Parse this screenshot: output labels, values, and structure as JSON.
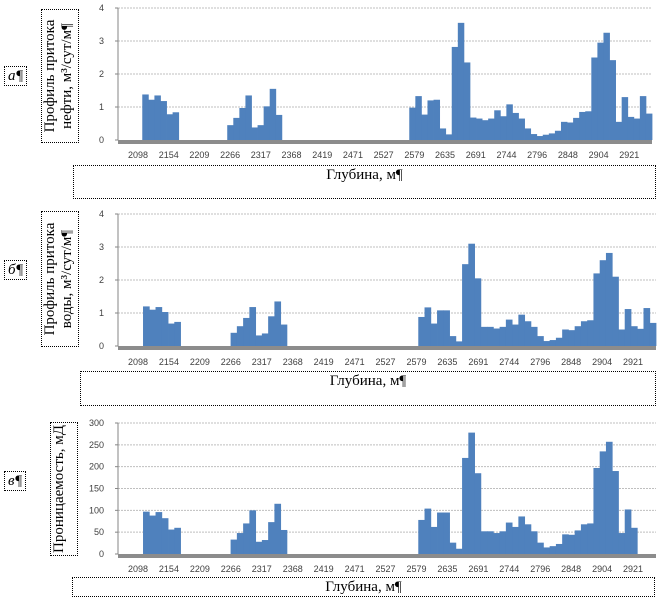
{
  "xlabel": "Глубина, м¶",
  "chart_data": [
    {
      "type": "bar",
      "panel": "а¶",
      "title": "",
      "ylabel": "Профиль притока нефти, м³/сут/м¶",
      "xlabel": "Глубина, м¶",
      "ylim": [
        0,
        4
      ],
      "yticks": [
        0,
        1,
        2,
        3,
        4
      ],
      "grid": true,
      "color": "#4f81bd",
      "tick_labels": [
        "2098",
        "2154",
        "2209",
        "2266",
        "2317",
        "2368",
        "2419",
        "2471",
        "2527",
        "2579",
        "2635",
        "2691",
        "2744",
        "2796",
        "2848",
        "2904",
        "2921"
      ],
      "values": [
        0,
        0,
        0,
        0,
        1.38,
        1.22,
        1.35,
        1.18,
        0.78,
        0.84,
        0,
        0,
        0,
        0,
        0,
        0,
        0,
        0,
        0.45,
        0.67,
        0.97,
        1.35,
        0.38,
        0.45,
        1.02,
        1.55,
        0.76,
        0,
        0,
        0,
        0,
        0,
        0,
        0,
        0,
        0,
        0,
        0,
        0,
        0,
        0,
        0,
        0,
        0,
        0,
        0,
        0,
        0,
        0.98,
        1.33,
        0.77,
        1.2,
        1.22,
        0.35,
        0.17,
        2.82,
        3.55,
        2.35,
        0.68,
        0.65,
        0.6,
        0.65,
        0.9,
        0.72,
        1.08,
        0.82,
        0.65,
        0.35,
        0.18,
        0.12,
        0.16,
        0.2,
        0.28,
        0.55,
        0.53,
        0.67,
        0.85,
        0.87,
        2.5,
        2.95,
        3.25,
        2.42,
        0.55,
        1.3,
        0.7,
        0.65,
        1.33,
        0.8
      ]
    },
    {
      "type": "bar",
      "panel": "б¶",
      "title": "",
      "ylabel": "Профиль притока воды, м³/сут/м¶",
      "xlabel": "Глубина, м¶",
      "ylim": [
        0,
        4
      ],
      "yticks": [
        0,
        1,
        2,
        3,
        4
      ],
      "grid": true,
      "color": "#4f81bd",
      "tick_labels": [
        "2098",
        "2154",
        "2209",
        "2266",
        "2317",
        "2368",
        "2419",
        "2471",
        "2527",
        "2579",
        "2635",
        "2691",
        "2744",
        "2796",
        "2848",
        "2904",
        "2921"
      ],
      "values": [
        0,
        0,
        0,
        0,
        1.2,
        1.1,
        1.18,
        1.03,
        0.68,
        0.73,
        0,
        0,
        0,
        0,
        0,
        0,
        0,
        0,
        0.4,
        0.6,
        0.85,
        1.18,
        0.32,
        0.38,
        0.9,
        1.35,
        0.65,
        0,
        0,
        0,
        0,
        0,
        0,
        0,
        0,
        0,
        0,
        0,
        0,
        0,
        0,
        0,
        0,
        0,
        0,
        0,
        0,
        0,
        0.88,
        1.17,
        0.68,
        1.08,
        1.08,
        0.3,
        0.14,
        2.48,
        3.1,
        2.05,
        0.58,
        0.58,
        0.53,
        0.58,
        0.8,
        0.65,
        0.95,
        0.75,
        0.58,
        0.3,
        0.15,
        0.18,
        0.25,
        0.5,
        0.48,
        0.6,
        0.75,
        0.78,
        2.2,
        2.6,
        2.82,
        2.1,
        0.5,
        1.12,
        0.6,
        0.52,
        1.15,
        0.7
      ]
    },
    {
      "type": "bar",
      "panel": "в¶",
      "title": "",
      "ylabel": "Проницаемость, мД",
      "xlabel": "Глубина, м¶",
      "ylim": [
        0,
        300
      ],
      "yticks": [
        0,
        50,
        100,
        150,
        200,
        250,
        300
      ],
      "grid": true,
      "color": "#4f81bd",
      "tick_labels": [
        "2098",
        "2154",
        "2209",
        "2266",
        "2317",
        "2368",
        "2419",
        "2471",
        "2527",
        "2579",
        "2635",
        "2691",
        "2744",
        "2796",
        "2848",
        "2904",
        "2921"
      ],
      "values": [
        0,
        0,
        0,
        0,
        97,
        88,
        96,
        82,
        56,
        60,
        0,
        0,
        0,
        0,
        0,
        0,
        0,
        0,
        33,
        48,
        70,
        100,
        28,
        32,
        73,
        115,
        55,
        0,
        0,
        0,
        0,
        0,
        0,
        0,
        0,
        0,
        0,
        0,
        0,
        0,
        0,
        0,
        0,
        0,
        0,
        0,
        0,
        0,
        78,
        104,
        62,
        95,
        95,
        26,
        12,
        220,
        278,
        185,
        52,
        52,
        48,
        52,
        72,
        62,
        86,
        68,
        52,
        26,
        15,
        18,
        23,
        45,
        44,
        54,
        68,
        70,
        197,
        235,
        257,
        190,
        48,
        102,
        60,
        0,
        0,
        0
      ]
    }
  ]
}
